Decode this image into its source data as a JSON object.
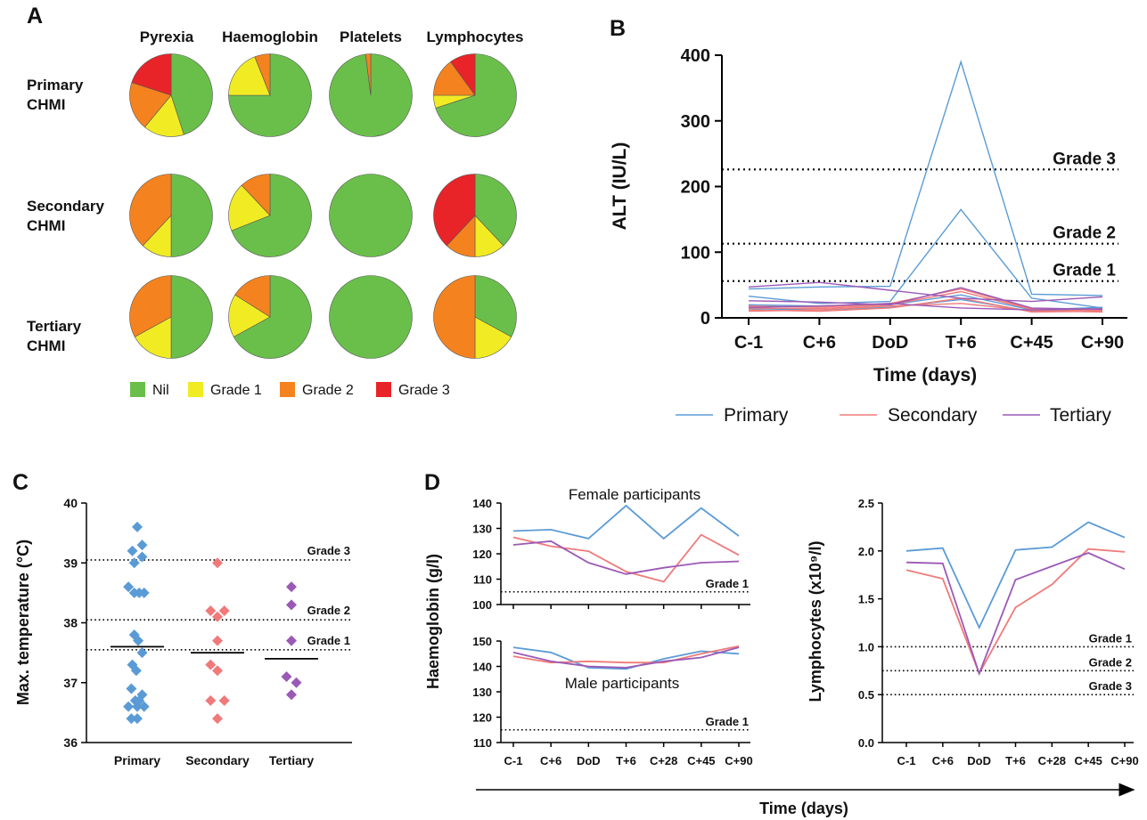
{
  "panels": {
    "a": "A",
    "b": "B",
    "c": "C",
    "d": "D"
  },
  "colors": {
    "nil": "#6abf4b",
    "grade1": "#f1eb24",
    "grade2": "#f4831f",
    "grade3": "#e82428",
    "primary": "#5b9bd5",
    "secondary": "#f07a7a",
    "tertiary": "#9b59b6"
  },
  "chart_data": [
    {
      "id": "A",
      "type": "pie",
      "columns": [
        "Pyrexia",
        "Haemoglobin",
        "Platelets",
        "Lymphocytes"
      ],
      "rows": [
        {
          "label1": "Primary",
          "label2": "CHMI"
        },
        {
          "label1": "Secondary",
          "label2": "CHMI"
        },
        {
          "label1": "Tertiary",
          "label2": "CHMI"
        }
      ],
      "categories": [
        "Nil",
        "Grade 1",
        "Grade 2",
        "Grade 3"
      ],
      "slices": [
        [
          [
            45,
            16,
            19,
            20
          ],
          [
            75,
            19,
            6,
            0
          ],
          [
            98,
            0,
            2,
            0
          ],
          [
            70,
            5,
            15,
            10
          ]
        ],
        [
          [
            50,
            12,
            38,
            0
          ],
          [
            69,
            19,
            12,
            0
          ],
          [
            100,
            0,
            0,
            0
          ],
          [
            38,
            12,
            12,
            38
          ]
        ],
        [
          [
            50,
            17,
            33,
            0
          ],
          [
            67,
            17,
            16,
            0
          ],
          [
            100,
            0,
            0,
            0
          ],
          [
            33,
            17,
            50,
            0
          ]
        ]
      ]
    },
    {
      "id": "B",
      "type": "line",
      "xlabel": "Time (days)",
      "ylabel": "ALT (IU/L)",
      "categories": [
        "C-1",
        "C+6",
        "DoD",
        "T+6",
        "C+45",
        "C+90"
      ],
      "ylim": [
        0,
        400
      ],
      "yticks": [
        0,
        100,
        200,
        300,
        400
      ],
      "thresholds": [
        {
          "label": "Grade 3",
          "value": 226
        },
        {
          "label": "Grade 2",
          "value": 113
        },
        {
          "label": "Grade 1",
          "value": 56
        }
      ],
      "legend": [
        "Primary",
        "Secondary",
        "Tertiary"
      ],
      "series": [
        {
          "group": "Primary",
          "values": [
            44,
            47,
            48,
            390,
            36,
            34
          ]
        },
        {
          "group": "Primary",
          "values": [
            33,
            22,
            25,
            165,
            30,
            15
          ]
        },
        {
          "group": "Primary",
          "values": [
            20,
            18,
            20,
            35,
            12,
            16
          ]
        },
        {
          "group": "Primary",
          "values": [
            14,
            12,
            16,
            28,
            10,
            13
          ]
        },
        {
          "group": "Secondary",
          "values": [
            18,
            16,
            22,
            44,
            14,
            12
          ]
        },
        {
          "group": "Secondary",
          "values": [
            12,
            10,
            15,
            30,
            9,
            10
          ]
        },
        {
          "group": "Secondary",
          "values": [
            10,
            12,
            18,
            22,
            11,
            9
          ]
        },
        {
          "group": "Secondary",
          "values": [
            15,
            14,
            20,
            40,
            13,
            11
          ]
        },
        {
          "group": "Tertiary",
          "values": [
            47,
            54,
            42,
            30,
            25,
            32
          ]
        },
        {
          "group": "Tertiary",
          "values": [
            26,
            24,
            20,
            46,
            15,
            13
          ]
        },
        {
          "group": "Tertiary",
          "values": [
            16,
            18,
            22,
            15,
            12,
            14
          ]
        }
      ]
    },
    {
      "id": "C",
      "type": "scatter",
      "ylabel": "Max. temperature (°C)",
      "categories": [
        "Primary",
        "Secondary",
        "Tertiary"
      ],
      "ylim": [
        36,
        40
      ],
      "yticks": [
        36,
        37,
        38,
        39,
        40
      ],
      "thresholds": [
        {
          "label": "Grade 3",
          "value": 39.05
        },
        {
          "label": "Grade 2",
          "value": 38.05
        },
        {
          "label": "Grade 1",
          "value": 37.55
        }
      ],
      "medians": [
        37.6,
        37.5,
        37.4
      ],
      "points": [
        [
          39.6,
          39.3,
          39.2,
          39.1,
          39.0,
          38.6,
          38.5,
          38.5,
          38.5,
          37.8,
          37.7,
          37.5,
          37.3,
          37.2,
          36.9,
          36.8,
          36.7,
          36.7,
          36.6,
          36.6,
          36.6,
          36.4,
          36.4
        ],
        [
          39.0,
          38.2,
          38.2,
          38.1,
          37.7,
          37.3,
          37.2,
          36.7,
          36.7,
          36.4
        ],
        [
          38.6,
          38.3,
          37.7,
          37.1,
          37.0,
          36.8
        ]
      ],
      "offsets": [
        [
          0,
          0.5,
          -0.5,
          0.5,
          -0.3,
          -0.9,
          -0.3,
          0.2,
          0.7,
          -0.3,
          0.1,
          0.5,
          -0.5,
          -0.1,
          -0.6,
          0.5,
          -0.2,
          0.2,
          -0.9,
          0,
          0.7,
          -0.6,
          0
        ],
        [
          0,
          -0.7,
          0.7,
          0,
          0,
          -0.7,
          0,
          -0.7,
          0.7,
          0
        ],
        [
          0,
          0,
          0,
          -0.5,
          0.5,
          0
        ]
      ]
    },
    {
      "id": "D-hb",
      "type": "line",
      "ylabel": "Haemoglobin (g/l)",
      "categories": [
        "C-1",
        "C+6",
        "DoD",
        "T+6",
        "C+28",
        "C+45",
        "C+90"
      ],
      "female": {
        "title": "Female participants",
        "ylim": [
          100,
          140
        ],
        "yticks": [
          100,
          110,
          120,
          130,
          140
        ],
        "threshold": {
          "label": "Grade 1",
          "value": 105
        },
        "series": [
          {
            "group": "Primary",
            "values": [
              129,
              129.5,
              126,
              139,
              126,
              138,
              127
            ]
          },
          {
            "group": "Secondary",
            "values": [
              126.5,
              123,
              121,
              113,
              109,
              127.5,
              119.5
            ]
          },
          {
            "group": "Tertiary",
            "values": [
              123.5,
              125,
              116.5,
              112,
              114.5,
              116.5,
              117
            ]
          }
        ]
      },
      "male": {
        "title": "Male participants",
        "ylim": [
          110,
          150
        ],
        "yticks": [
          110,
          120,
          130,
          140,
          150
        ],
        "threshold": {
          "label": "Grade 1",
          "value": 115
        },
        "series": [
          {
            "group": "Primary",
            "values": [
              147.5,
              145.5,
              139.5,
              139,
              143,
              146,
              145
            ]
          },
          {
            "group": "Secondary",
            "values": [
              144,
              141.5,
              142,
              141.5,
              141.5,
              145,
              148
            ]
          },
          {
            "group": "Tertiary",
            "values": [
              145.5,
              142,
              140,
              139.5,
              142,
              143.5,
              147.5
            ]
          }
        ]
      }
    },
    {
      "id": "D-lymph",
      "type": "line",
      "ylabel": "Lymphocytes (x10⁹/l)",
      "categories": [
        "C-1",
        "C+6",
        "DoD",
        "T+6",
        "C+28",
        "C+45",
        "C+90"
      ],
      "ylim": [
        0,
        2.5
      ],
      "yticks": [
        "0.0",
        "0.5",
        "1.0",
        "1.5",
        "2.0",
        "2.5"
      ],
      "thresholds": [
        {
          "label": "Grade 1",
          "value": 1.0
        },
        {
          "label": "Grade 2",
          "value": 0.75
        },
        {
          "label": "Grade 3",
          "value": 0.5
        }
      ],
      "series": [
        {
          "group": "Primary",
          "values": [
            2.0,
            2.03,
            1.2,
            2.01,
            2.04,
            2.3,
            2.14
          ]
        },
        {
          "group": "Secondary",
          "values": [
            1.8,
            1.71,
            0.72,
            1.41,
            1.65,
            2.02,
            1.99
          ]
        },
        {
          "group": "Tertiary",
          "values": [
            1.88,
            1.87,
            0.72,
            1.7,
            1.84,
            1.98,
            1.81
          ]
        }
      ],
      "xlabel": "Time (days)"
    }
  ]
}
